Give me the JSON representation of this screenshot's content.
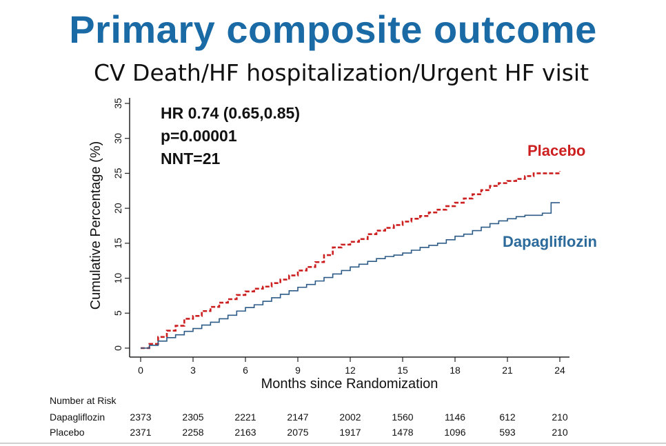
{
  "slide": {
    "title": "Primary composite outcome",
    "subtitle": "CV Death/HF hospitalization/Urgent HF visit"
  },
  "colors": {
    "title": "#1a6aa6",
    "placebo": "#cc1f1f",
    "dapagliflozin": "#2b5a86"
  },
  "annotations": [
    "HR 0.74 (0.65,0.85)",
    "p=0.00001",
    "NNT=21"
  ],
  "risk_table": {
    "title": "Number at Risk",
    "rows": [
      {
        "name": "Dapagliflozin",
        "values": [
          "2373",
          "2305",
          "2221",
          "2147",
          "2002",
          "1560",
          "1146",
          "612",
          "210"
        ]
      },
      {
        "name": "Placebo",
        "values": [
          "2371",
          "2258",
          "2163",
          "2075",
          "1917",
          "1478",
          "1096",
          "593",
          "210"
        ]
      }
    ]
  },
  "chart_data": {
    "type": "line",
    "xlabel": "Months since Randomization",
    "ylabel": "Cumulative Percentage (%)",
    "xlim": [
      0,
      24
    ],
    "ylim": [
      0,
      35
    ],
    "xticks": [
      0,
      3,
      6,
      9,
      12,
      15,
      18,
      21,
      24
    ],
    "yticks": [
      0,
      5,
      10,
      15,
      20,
      25,
      30,
      35
    ],
    "grid": false,
    "series": [
      {
        "name": "Placebo",
        "style": "dashed",
        "color": "#cc1f1f",
        "x": [
          0,
          0.5,
          1,
          1.5,
          2,
          2.5,
          3,
          3.5,
          4,
          4.5,
          5,
          5.5,
          6,
          6.5,
          7,
          7.5,
          8,
          8.5,
          9,
          9.5,
          10,
          10.5,
          11,
          11.5,
          12,
          12.5,
          13,
          13.5,
          14,
          14.5,
          15,
          15.5,
          16,
          16.5,
          17,
          17.5,
          18,
          18.5,
          19,
          19.5,
          20,
          20.5,
          21,
          21.5,
          22,
          22.5,
          23,
          23.5,
          24
        ],
        "y": [
          0,
          0.6,
          1.6,
          2.5,
          3.2,
          4.2,
          4.6,
          5.3,
          5.9,
          6.5,
          7.0,
          7.6,
          8.1,
          8.5,
          8.8,
          9.3,
          9.8,
          10.4,
          11.1,
          11.6,
          12.3,
          13.3,
          14.4,
          14.8,
          15.2,
          15.6,
          16.3,
          16.8,
          17.2,
          17.6,
          18.1,
          18.5,
          18.9,
          19.4,
          19.8,
          20.3,
          20.8,
          21.4,
          22.0,
          22.6,
          23.2,
          23.6,
          23.9,
          24.2,
          24.6,
          25.0,
          25.0,
          25.0,
          25.3
        ]
      },
      {
        "name": "Dapagliflozin",
        "style": "solid",
        "color": "#2b5a86",
        "x": [
          0,
          0.5,
          1,
          1.5,
          2,
          2.5,
          3,
          3.5,
          4,
          4.5,
          5,
          5.5,
          6,
          6.5,
          7,
          7.5,
          8,
          8.5,
          9,
          9.5,
          10,
          10.5,
          11,
          11.5,
          12,
          12.5,
          13,
          13.5,
          14,
          14.5,
          15,
          15.5,
          16,
          16.5,
          17,
          17.5,
          18,
          18.5,
          19,
          19.5,
          20,
          20.5,
          21,
          21.5,
          22,
          22.5,
          23,
          23.5,
          24
        ],
        "y": [
          0,
          0.4,
          1.0,
          1.5,
          1.9,
          2.4,
          2.8,
          3.3,
          3.7,
          4.2,
          4.7,
          5.3,
          5.8,
          6.2,
          6.7,
          7.2,
          7.7,
          8.2,
          8.7,
          9.1,
          9.6,
          10.1,
          10.6,
          11.1,
          11.6,
          12.0,
          12.4,
          12.8,
          13.1,
          13.3,
          13.6,
          14.0,
          14.4,
          14.7,
          15.0,
          15.5,
          16.0,
          16.3,
          16.8,
          17.3,
          17.8,
          18.2,
          18.5,
          18.8,
          19.0,
          19.0,
          19.3,
          20.8,
          20.8
        ]
      }
    ]
  }
}
